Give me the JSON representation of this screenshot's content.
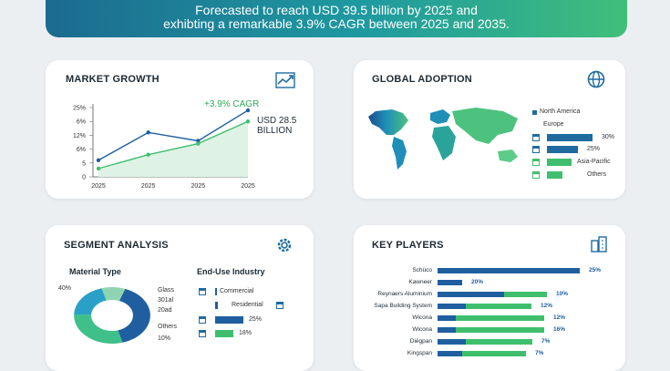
{
  "banner": {
    "line1": "Forecasted to reach USD 39.5 billion by 2025 and",
    "line2": "exhibting a remarkable 3.9% CAGR between 2025 and 2035."
  },
  "growth": {
    "title": "MARKET GROWTH",
    "cagr": "+3.9% CAGR",
    "value_line1": "USD 28.5",
    "value_line2": "BILLION",
    "chart_data": {
      "type": "line",
      "x": [
        "2025",
        "2025",
        "2025",
        "2025"
      ],
      "yticks": [
        "0",
        "5",
        "6%",
        "12%",
        "6%",
        "25%"
      ],
      "series": [
        {
          "values": [
            6,
            16,
            13,
            24
          ],
          "color": "#1f5fa0"
        },
        {
          "values": [
            3,
            8,
            12,
            20
          ],
          "color": "#3fbf6e"
        }
      ],
      "ylim": [
        0,
        25
      ]
    }
  },
  "adoption": {
    "title": "GLOBAL ADOPTION",
    "legend": [
      {
        "label": "North America",
        "color": "#1f6ba0"
      },
      {
        "label": "Europe",
        "color": "#1f6ba0"
      },
      {
        "label": "30%",
        "color": "#1f6ba0"
      },
      {
        "label": "25%",
        "color": "#1f6ba0"
      },
      {
        "label": "Asia-Pacific",
        "color": "#3fbf6e"
      },
      {
        "label": "Others",
        "color": "#3fbf6e"
      }
    ],
    "bars": [
      0.9,
      0.6,
      0.48,
      0.3
    ]
  },
  "segment": {
    "title": "SEGMENT ANALYSIS",
    "material_type": "Material Type",
    "end_use": "End-Use Industry",
    "donut_labels": {
      "p40": "40%",
      "glass": "Glass",
      "l3014": "301al",
      "l204": "20ad",
      "others": "Others",
      "p10": "10%"
    },
    "donut": [
      {
        "value": 40,
        "color": "#1f5fa0"
      },
      {
        "value": 30,
        "color": "#3fbf8a"
      },
      {
        "value": 20,
        "color": "#2aa0c8"
      },
      {
        "value": 10,
        "color": "#8fd4b0"
      }
    ],
    "industry": [
      {
        "label": "Commercial",
        "bar": 0.0,
        "color": "#1f5fa0"
      },
      {
        "label": "Residential",
        "bar": 0.05,
        "color": "#1f5fa0"
      },
      {
        "label": "25%",
        "bar": 0.55,
        "color": "#1f5fa0"
      },
      {
        "label": "18%",
        "bar": 0.35,
        "color": "#3fbf6e"
      }
    ]
  },
  "players": {
    "title": "KEY PLAYERS",
    "rows": [
      {
        "name": "Schüco",
        "blue": 1.0,
        "green": 0.0,
        "pct": "25%"
      },
      {
        "name": "Kawneer",
        "blue": 0.17,
        "green": 0.0,
        "pct": "20%"
      },
      {
        "name": "Reynaers Aluminium",
        "blue": 0.47,
        "green": 0.3,
        "pct": "10%"
      },
      {
        "name": "Sapa Building System",
        "blue": 0.2,
        "green": 0.46,
        "pct": "12%"
      },
      {
        "name": "Wicona",
        "blue": 0.13,
        "green": 0.62,
        "pct": "12%"
      },
      {
        "name": "Wicona",
        "blue": 0.13,
        "green": 0.62,
        "pct": "16%"
      },
      {
        "name": "Diëgpan",
        "blue": 0.2,
        "green": 0.47,
        "pct": "7%"
      },
      {
        "name": "Kingspan",
        "blue": 0.17,
        "green": 0.45,
        "pct": "7%"
      }
    ]
  }
}
